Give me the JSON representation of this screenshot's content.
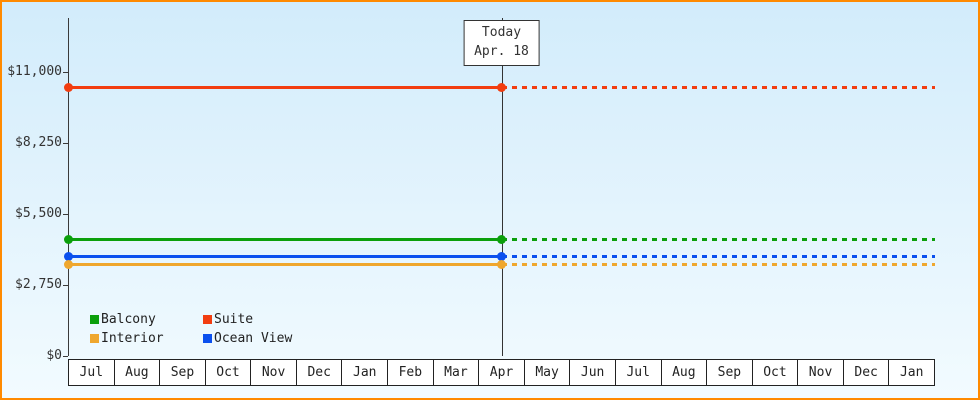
{
  "chart_data": {
    "type": "line",
    "title": "",
    "xlabel": "",
    "ylabel": "",
    "x_categories": [
      "Jul",
      "Aug",
      "Sep",
      "Oct",
      "Nov",
      "Dec",
      "Jan",
      "Feb",
      "Mar",
      "Apr",
      "May",
      "Jun",
      "Jul",
      "Aug",
      "Sep",
      "Oct",
      "Nov",
      "Dec",
      "Jan"
    ],
    "y_ticks": [
      {
        "label": "$0",
        "value": 0
      },
      {
        "label": "$2,750",
        "value": 2750
      },
      {
        "label": "$5,500",
        "value": 5500
      },
      {
        "label": "$8,250",
        "value": 8250
      },
      {
        "label": "$11,000",
        "value": 11000
      }
    ],
    "ylim": [
      0,
      13000
    ],
    "grid": false,
    "today": {
      "line1": "Today",
      "line2": "Apr. 18",
      "category_index": 9
    },
    "series": [
      {
        "name": "Suite",
        "color": "#f23d10",
        "value": 10400,
        "style": "solid-until-today-then-dotted"
      },
      {
        "name": "Balcony",
        "color": "#0b9f0b",
        "value": 4500,
        "style": "solid-until-today-then-dotted"
      },
      {
        "name": "Ocean View",
        "color": "#0b50ee",
        "value": 3850,
        "style": "solid-until-today-then-dotted"
      },
      {
        "name": "Interior",
        "color": "#efa72e",
        "value": 3550,
        "style": "solid-until-today-then-dotted"
      }
    ],
    "legend": {
      "position": "bottom-left-inside",
      "order": [
        "Balcony",
        "Suite",
        "Interior",
        "Ocean View"
      ]
    }
  },
  "colors": {
    "frame_border": "#ff8a00",
    "axis": "#3a3a3a",
    "background_top": "#d2ecfb",
    "background_bottom": "#f2fbff"
  }
}
